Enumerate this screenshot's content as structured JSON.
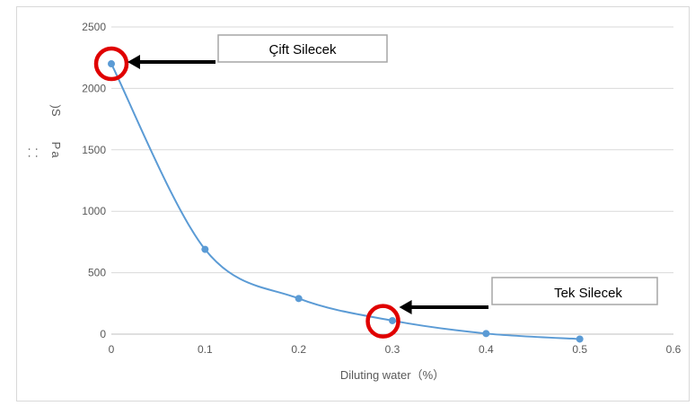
{
  "chart_data": {
    "type": "scatter",
    "xlabel": "Diluting water（%）",
    "ylabel": "ǿǿ",
    "ylabel_glyphs": [
      "⸬",
      "P",
      "a",
      ")S"
    ],
    "xlim": [
      0,
      0.6
    ],
    "ylim": [
      0,
      2500
    ],
    "x_ticks": [
      "0",
      "0.1",
      "0.2",
      "0.3",
      "0.4",
      "0.5",
      "0.6"
    ],
    "y_ticks": [
      "0",
      "500",
      "1000",
      "1500",
      "2000",
      "2500"
    ],
    "grid": true,
    "smooth_line": true,
    "series": [
      {
        "color": "#5b9bd5",
        "points": [
          {
            "x": 0.0,
            "y": 2200
          },
          {
            "x": 0.1,
            "y": 690
          },
          {
            "x": 0.2,
            "y": 290
          },
          {
            "x": 0.3,
            "y": 110
          },
          {
            "x": 0.4,
            "y": 5
          },
          {
            "x": 0.5,
            "y": -40
          }
        ]
      }
    ],
    "annotations": [
      {
        "label": "Çift Silecek",
        "x": 0.0,
        "y": 2200,
        "marker_color": "#e00000"
      },
      {
        "label": "Tek Silecek",
        "x": 0.29,
        "y": 105,
        "marker_color": "#e00000"
      }
    ]
  }
}
